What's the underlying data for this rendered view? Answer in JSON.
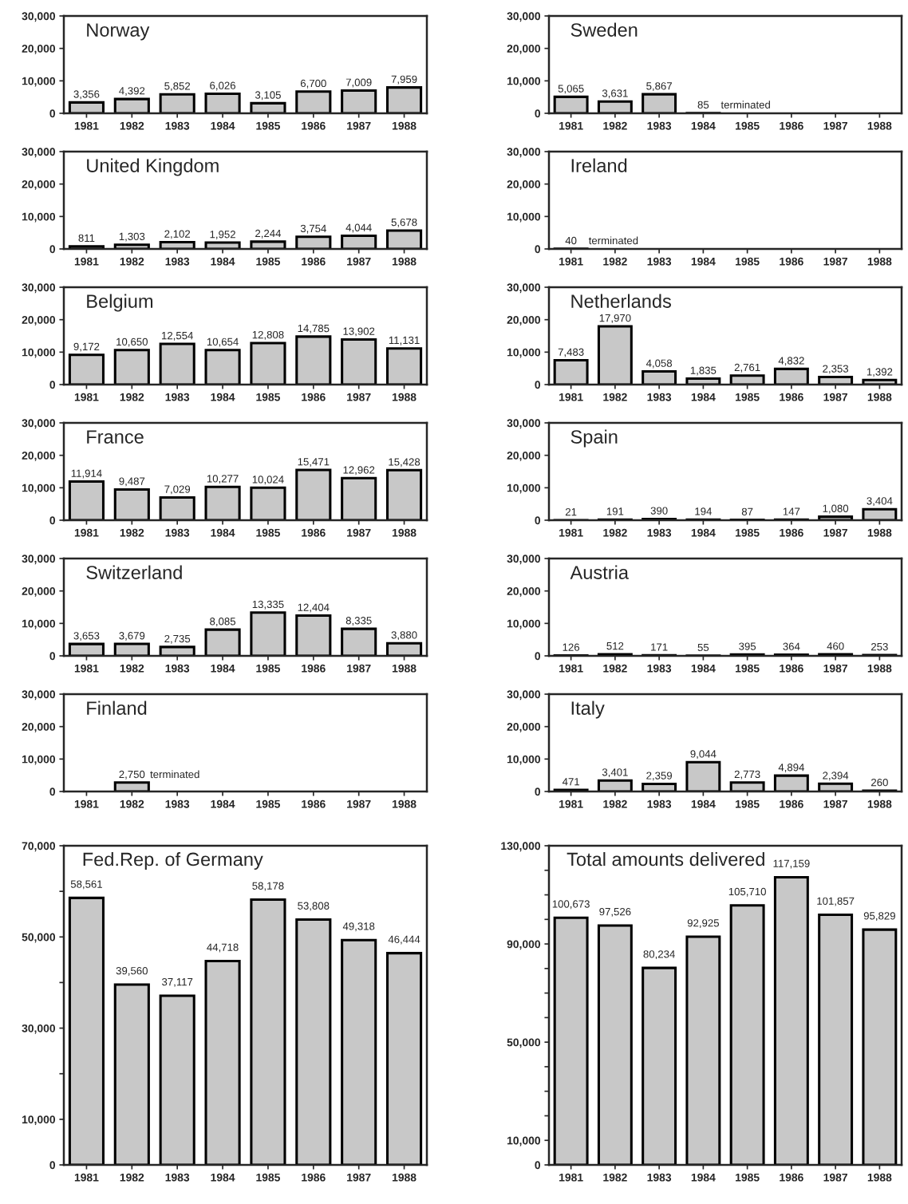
{
  "chart_data": [
    {
      "type": "bar",
      "title": "Norway",
      "categories": [
        "1981",
        "1982",
        "1983",
        "1984",
        "1985",
        "1986",
        "1987",
        "1988"
      ],
      "values": [
        3356,
        4392,
        5852,
        6026,
        3105,
        6700,
        7009,
        7959
      ],
      "value_labels": [
        "3,356",
        "4,392",
        "5,852",
        "6,026",
        "3,105",
        "6,700",
        "7,009",
        "7,959"
      ],
      "color": "#c8c8c8",
      "ylim": [
        0,
        30000
      ],
      "yticks": [
        0,
        {
          "value": 10000,
          "label": "10,000"
        },
        {
          "value": 20000,
          "label": "20,000"
        },
        {
          "value": 30000,
          "label": "30,000"
        }
      ],
      "grid": false
    },
    {
      "type": "bar",
      "title": "Sweden",
      "categories": [
        "1981",
        "1982",
        "1983",
        "1984",
        "1985",
        "1986",
        "1987",
        "1988"
      ],
      "values": [
        5065,
        3631,
        5867,
        85,
        null,
        null,
        null,
        null
      ],
      "value_labels": [
        "5,065",
        "3,631",
        "5,867",
        "85",
        null,
        null,
        null,
        null
      ],
      "annotations": [
        "terminated"
      ],
      "color": "#c8c8c8",
      "ylim": [
        0,
        30000
      ],
      "yticks": [
        0,
        {
          "value": 10000,
          "label": "10,000"
        },
        {
          "value": 20000,
          "label": "20,000"
        },
        {
          "value": 30000,
          "label": "30,000"
        }
      ],
      "grid": false
    },
    {
      "type": "bar",
      "title": "United Kingdom",
      "categories": [
        "1981",
        "1982",
        "1983",
        "1984",
        "1985",
        "1986",
        "1987",
        "1988"
      ],
      "values": [
        811,
        1303,
        2102,
        1952,
        2244,
        3754,
        4044,
        5678
      ],
      "value_labels": [
        "811",
        "1,303",
        "2,102",
        "1,952",
        "2,244",
        "3,754",
        "4,044",
        "5,678"
      ],
      "color": "#c8c8c8",
      "ylim": [
        0,
        30000
      ],
      "yticks": [
        0,
        {
          "value": 10000,
          "label": "10,000"
        },
        {
          "value": 20000,
          "label": "20,000"
        },
        {
          "value": 30000,
          "label": "30,000"
        }
      ],
      "grid": false
    },
    {
      "type": "bar",
      "title": "Ireland",
      "categories": [
        "1981",
        "1982",
        "1983",
        "1984",
        "1985",
        "1986",
        "1987",
        "1988"
      ],
      "values": [
        40,
        null,
        null,
        null,
        null,
        null,
        null,
        null
      ],
      "value_labels": [
        "40",
        null,
        null,
        null,
        null,
        null,
        null,
        null
      ],
      "annotations": [
        "terminated"
      ],
      "color": "#c8c8c8",
      "ylim": [
        0,
        30000
      ],
      "yticks": [
        0,
        {
          "value": 10000,
          "label": "10,000"
        },
        {
          "value": 20000,
          "label": "20,000"
        },
        {
          "value": 30000,
          "label": "30,000"
        }
      ],
      "grid": false
    },
    {
      "type": "bar",
      "title": "Belgium",
      "categories": [
        "1981",
        "1982",
        "1983",
        "1984",
        "1985",
        "1986",
        "1987",
        "1988"
      ],
      "values": [
        9172,
        10650,
        12554,
        10654,
        12808,
        14785,
        13902,
        11131
      ],
      "value_labels": [
        "9,172",
        "10,650",
        "12,554",
        "10,654",
        "12,808",
        "14,785",
        "13,902",
        "11,131"
      ],
      "color": "#c8c8c8",
      "ylim": [
        0,
        30000
      ],
      "yticks": [
        0,
        {
          "value": 10000,
          "label": "10,000"
        },
        {
          "value": 20000,
          "label": "20,000"
        },
        {
          "value": 30000,
          "label": "30,000"
        }
      ],
      "grid": false
    },
    {
      "type": "bar",
      "title": "Netherlands",
      "categories": [
        "1981",
        "1982",
        "1983",
        "1984",
        "1985",
        "1986",
        "1987",
        "1988"
      ],
      "values": [
        7483,
        17970,
        4058,
        1835,
        2761,
        4832,
        2353,
        1392
      ],
      "value_labels": [
        "7,483",
        "17,970",
        "4,058",
        "1,835",
        "2,761",
        "4,832",
        "2,353",
        "1,392"
      ],
      "color": "#c8c8c8",
      "ylim": [
        0,
        30000
      ],
      "yticks": [
        0,
        {
          "value": 10000,
          "label": "10,000"
        },
        {
          "value": 20000,
          "label": "20,000"
        },
        {
          "value": 30000,
          "label": "30,000"
        }
      ],
      "grid": false
    },
    {
      "type": "bar",
      "title": "France",
      "categories": [
        "1981",
        "1982",
        "1983",
        "1984",
        "1985",
        "1986",
        "1987",
        "1988"
      ],
      "values": [
        11914,
        9487,
        7029,
        10277,
        10024,
        15471,
        12962,
        15428
      ],
      "value_labels": [
        "11,914",
        "9,487",
        "7,029",
        "10,277",
        "10,024",
        "15,471",
        "12,962",
        "15,428"
      ],
      "color": "#c8c8c8",
      "ylim": [
        0,
        30000
      ],
      "yticks": [
        0,
        {
          "value": 10000,
          "label": "10,000"
        },
        {
          "value": 20000,
          "label": "20,000"
        },
        {
          "value": 30000,
          "label": "30,000"
        }
      ],
      "grid": false
    },
    {
      "type": "bar",
      "title": "Spain",
      "categories": [
        "1981",
        "1982",
        "1983",
        "1984",
        "1985",
        "1986",
        "1987",
        "1988"
      ],
      "values": [
        21,
        191,
        390,
        194,
        87,
        147,
        1080,
        3404
      ],
      "value_labels": [
        "21",
        "191",
        "390",
        "194",
        "87",
        "147",
        "1,080",
        "3,404"
      ],
      "color": "#c8c8c8",
      "ylim": [
        0,
        30000
      ],
      "yticks": [
        0,
        {
          "value": 10000,
          "label": "10,000"
        },
        {
          "value": 20000,
          "label": "20,000"
        },
        {
          "value": 30000,
          "label": "30,000"
        }
      ],
      "grid": false
    },
    {
      "type": "bar",
      "title": "Switzerland",
      "categories": [
        "1981",
        "1982",
        "1983",
        "1984",
        "1985",
        "1986",
        "1987",
        "1988"
      ],
      "values": [
        3653,
        3679,
        2735,
        8085,
        13335,
        12404,
        8335,
        3880
      ],
      "value_labels": [
        "3,653",
        "3,679",
        "2,735",
        "8,085",
        "13,335",
        "12,404",
        "8,335",
        "3,880"
      ],
      "color": "#c8c8c8",
      "ylim": [
        0,
        30000
      ],
      "yticks": [
        0,
        {
          "value": 10000,
          "label": "10,000"
        },
        {
          "value": 20000,
          "label": "20,000"
        },
        {
          "value": 30000,
          "label": "30,000"
        }
      ],
      "grid": false
    },
    {
      "type": "bar",
      "title": "Austria",
      "categories": [
        "1981",
        "1982",
        "1983",
        "1984",
        "1985",
        "1986",
        "1987",
        "1988"
      ],
      "values": [
        126,
        512,
        171,
        55,
        395,
        364,
        460,
        253
      ],
      "value_labels": [
        "126",
        "512",
        "171",
        "55",
        "395",
        "364",
        "460",
        "253"
      ],
      "color": "#c8c8c8",
      "ylim": [
        0,
        30000
      ],
      "yticks": [
        0,
        {
          "value": 10000,
          "label": "10,000"
        },
        {
          "value": 20000,
          "label": "20,000"
        },
        {
          "value": 30000,
          "label": "30,000"
        }
      ],
      "grid": false
    },
    {
      "type": "bar",
      "title": "Finland",
      "categories": [
        "1981",
        "1982",
        "1983",
        "1984",
        "1985",
        "1986",
        "1987",
        "1988"
      ],
      "values": [
        null,
        2750,
        null,
        null,
        null,
        null,
        null,
        null
      ],
      "value_labels": [
        null,
        "2,750",
        null,
        null,
        null,
        null,
        null,
        null
      ],
      "annotations": [
        "terminated"
      ],
      "color": "#c8c8c8",
      "ylim": [
        0,
        30000
      ],
      "yticks": [
        0,
        {
          "value": 10000,
          "label": "10,000"
        },
        {
          "value": 20000,
          "label": "20,000"
        },
        {
          "value": 30000,
          "label": "30,000"
        }
      ],
      "grid": false
    },
    {
      "type": "bar",
      "title": "Italy",
      "categories": [
        "1981",
        "1982",
        "1983",
        "1984",
        "1985",
        "1986",
        "1987",
        "1988"
      ],
      "values": [
        471,
        3401,
        2359,
        9044,
        2773,
        4894,
        2394,
        260
      ],
      "value_labels": [
        "471",
        "3,401",
        "2,359",
        "9,044",
        "2,773",
        "4,894",
        "2,394",
        "260"
      ],
      "color": "#c8c8c8",
      "ylim": [
        0,
        30000
      ],
      "yticks": [
        0,
        {
          "value": 10000,
          "label": "10,000"
        },
        {
          "value": 20000,
          "label": "20,000"
        },
        {
          "value": 30000,
          "label": "30,000"
        }
      ],
      "grid": false
    },
    {
      "type": "bar",
      "title": "Fed.Rep. of Germany",
      "categories": [
        "1981",
        "1982",
        "1983",
        "1984",
        "1985",
        "1986",
        "1987",
        "1988"
      ],
      "values": [
        58561,
        39560,
        37117,
        44718,
        58178,
        53808,
        49318,
        46444
      ],
      "value_labels": [
        "58,561",
        "39,560",
        "37,117",
        "44,718",
        "58,178",
        "53,808",
        "49,318",
        "46,444"
      ],
      "color": "#c8c8c8",
      "ylim": [
        0,
        70000
      ],
      "yticks": [
        0,
        {
          "value": 10000,
          "label": "10,000"
        },
        {
          "value": 20000,
          "label": null
        },
        {
          "value": 30000,
          "label": "30,000"
        },
        {
          "value": 40000,
          "label": null
        },
        {
          "value": 50000,
          "label": "50,000"
        },
        {
          "value": 60000,
          "label": null
        },
        {
          "value": 70000,
          "label": "70,000"
        }
      ],
      "grid": false
    },
    {
      "type": "bar",
      "title": "Total amounts delivered",
      "categories": [
        "1981",
        "1982",
        "1983",
        "1984",
        "1985",
        "1986",
        "1987",
        "1988"
      ],
      "values": [
        100673,
        97526,
        80234,
        92925,
        105710,
        117159,
        101857,
        95829
      ],
      "value_labels": [
        "100,673",
        "97,526",
        "80,234",
        "92,925",
        "105,710",
        "117,159",
        "101,857",
        "95,829"
      ],
      "color": "#c8c8c8",
      "ylim": [
        0,
        130000
      ],
      "yticks": [
        0,
        {
          "value": 10000,
          "label": "10,000"
        },
        {
          "value": 20000,
          "label": null
        },
        {
          "value": 30000,
          "label": null
        },
        {
          "value": 40000,
          "label": null
        },
        {
          "value": 50000,
          "label": "50,000"
        },
        {
          "value": 60000,
          "label": null
        },
        {
          "value": 70000,
          "label": null
        },
        {
          "value": 80000,
          "label": null
        },
        {
          "value": 90000,
          "label": "90,000"
        },
        {
          "value": 100000,
          "label": null
        },
        {
          "value": 110000,
          "label": null
        },
        {
          "value": 120000,
          "label": null
        },
        {
          "value": 130000,
          "label": "130,000"
        }
      ],
      "grid": false
    }
  ]
}
